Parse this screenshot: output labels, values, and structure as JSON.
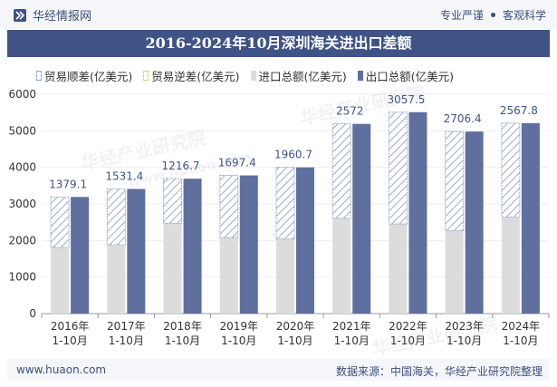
{
  "header": {
    "brand": "华经情报网",
    "tag1": "专业严谨",
    "tag2": "客观科学"
  },
  "title": "2016-2024年10月深圳海关进出口差额",
  "legend": {
    "surplus": "贸易顺差(亿美元)",
    "deficit": "贸易逆差(亿美元)",
    "import": "进口总额(亿美元)",
    "export": "出口总额(亿美元)"
  },
  "watermark": {
    "cn": "华经产业研究院",
    "url": "www.huaon.com"
  },
  "footer": {
    "url": "www.huaon.com",
    "source": "数据来源：中国海关，华经产业研究院整理"
  },
  "chart_data": {
    "type": "bar",
    "categories": [
      "2016年\n1-10月",
      "2017年\n1-10月",
      "2018年\n1-10月",
      "2019年\n1-10月",
      "2020年\n1-10月",
      "2021年\n1-10月",
      "2022年\n1-10月",
      "2023年\n1-10月",
      "2024年\n1-10月"
    ],
    "series": [
      {
        "name": "进口总额(亿美元)",
        "values": [
          1810,
          1880,
          2470,
          2080,
          2040,
          2610,
          2450,
          2270,
          2640
        ]
      },
      {
        "name": "出口总额(亿美元)",
        "values": [
          3190,
          3410,
          3690,
          3780,
          4000,
          5190,
          5510,
          4980,
          5210
        ]
      },
      {
        "name": "贸易顺差(亿美元)",
        "values": [
          1379.1,
          1531.4,
          1216.7,
          1697.4,
          1960.7,
          2572,
          3057.5,
          2706.4,
          2567.8
        ]
      }
    ],
    "surplus_labels": [
      "1379.1",
      "1531.4",
      "1216.7",
      "1697.4",
      "1960.7",
      "2572",
      "3057.5",
      "2706.4",
      "2567.8"
    ],
    "y_ticks": [
      "0",
      "1000",
      "2000",
      "3000",
      "4000",
      "5000",
      "6000"
    ],
    "ylim": [
      0,
      6000
    ],
    "title": "2016-2024年10月深圳海关进出口差额",
    "xlabel": "",
    "ylabel": ""
  }
}
